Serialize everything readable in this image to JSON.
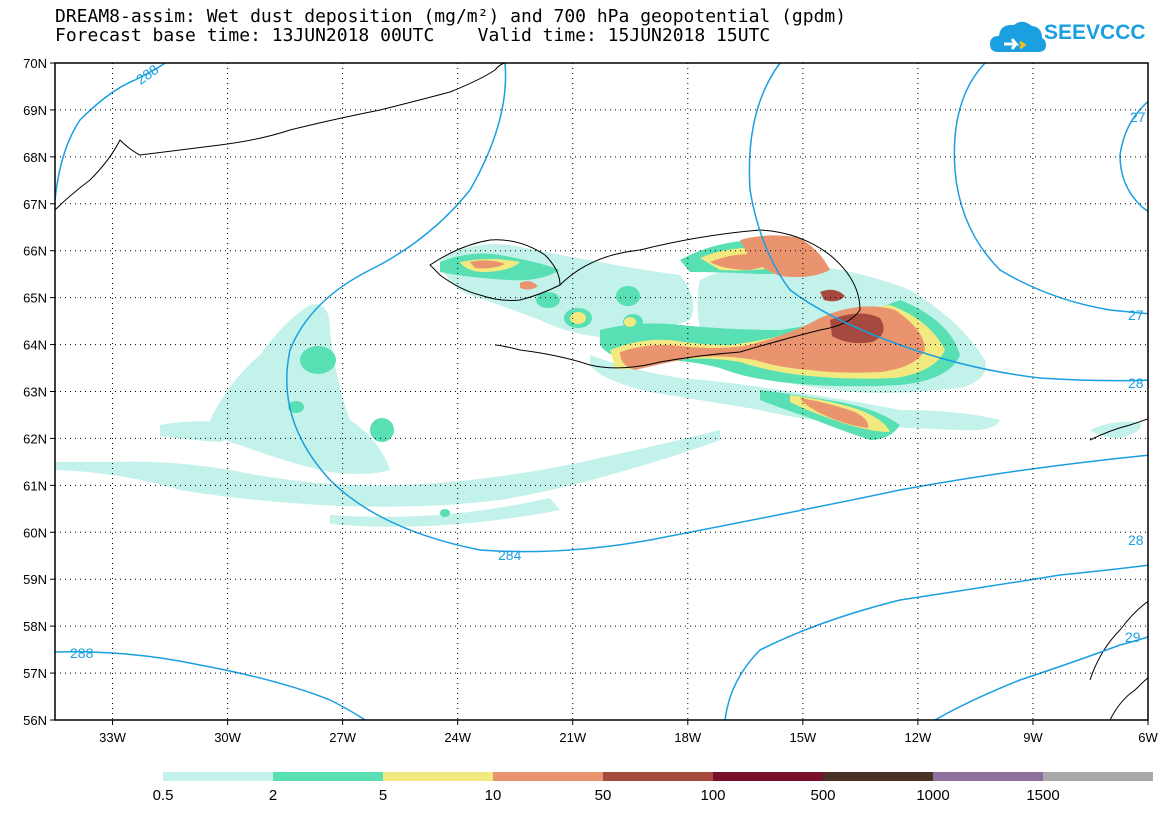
{
  "title": {
    "line1": "DREAM8-assim: Wet dust deposition (mg/m²) and 700 hPa geopotential (gpdm)",
    "line2": "Forecast base time: 13JUN2018 00UTC    Valid time: 15JUN2018 15UTC"
  },
  "logo": {
    "text": "SEEVCCC",
    "icon": "cloud-icon"
  },
  "colors": {
    "contour": "#1a9fe0",
    "c1": "#c2f2ea",
    "c2": "#58dfb4",
    "c3": "#f2ea80",
    "c4": "#e9946e",
    "c5": "#a6493e",
    "c6": "#7a0f2c",
    "c7": "#4a3125",
    "c8": "#8e6e9a",
    "c9": "#a8a8a8"
  },
  "map": {
    "lon_range": [
      -34.5,
      -6
    ],
    "lat_range": [
      56,
      70
    ],
    "lat_labels": [
      "70N",
      "69N",
      "68N",
      "67N",
      "66N",
      "65N",
      "64N",
      "63N",
      "62N",
      "61N",
      "60N",
      "59N",
      "58N",
      "57N",
      "56N"
    ],
    "lon_labels": [
      "33W",
      "30W",
      "27W",
      "24W",
      "21W",
      "18W",
      "15W",
      "12W",
      "9W",
      "6W"
    ],
    "contour_labels": [
      "288",
      "284",
      "288",
      "27",
      "27",
      "28",
      "28",
      "29"
    ]
  },
  "legend": {
    "labels": [
      "0.5",
      "2",
      "5",
      "10",
      "50",
      "100",
      "500",
      "1000",
      "1500"
    ]
  }
}
